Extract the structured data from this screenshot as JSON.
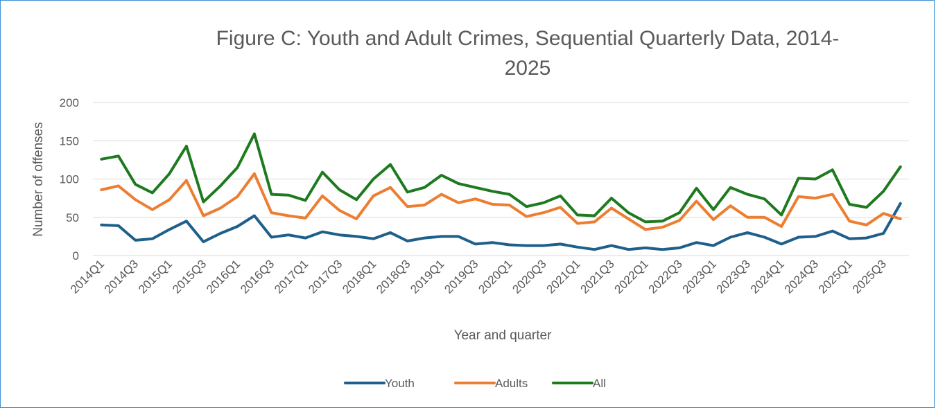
{
  "chart_data": {
    "type": "line",
    "title_line1": "Figure C: Youth and Adult Crimes, Sequential Quarterly Data, 2014-",
    "title_line2": "2025",
    "xlabel": "Year and quarter",
    "ylabel": "Number of offenses",
    "ylim": [
      0,
      200
    ],
    "yticks": [
      0,
      50,
      100,
      150,
      200
    ],
    "grid": true,
    "legend_position": "bottom",
    "x": [
      "2014Q1",
      "2014Q2",
      "2014Q3",
      "2014Q4",
      "2015Q1",
      "2015Q2",
      "2015Q3",
      "2015Q4",
      "2016Q1",
      "2016Q2",
      "2016Q3",
      "2016Q4",
      "2017Q1",
      "2017Q2",
      "2017Q3",
      "2017Q4",
      "2018Q1",
      "2018Q2",
      "2018Q3",
      "2018Q4",
      "2019Q1",
      "2019Q2",
      "2019Q3",
      "2019Q4",
      "2020Q1",
      "2020Q2",
      "2020Q3",
      "2020Q4",
      "2021Q1",
      "2021Q2",
      "2021Q3",
      "2021Q4",
      "2022Q1",
      "2022Q2",
      "2022Q3",
      "2022Q4",
      "2023Q1",
      "2023Q2",
      "2023Q3",
      "2023Q4",
      "2024Q1",
      "2024Q2",
      "2024Q3",
      "2024Q4",
      "2025Q1",
      "2025Q2",
      "2025Q3",
      "2025Q4"
    ],
    "x_tick_labels": [
      "2014Q1",
      "2014Q3",
      "2015Q1",
      "2015Q3",
      "2016Q1",
      "2016Q3",
      "2017Q1",
      "2017Q3",
      "2018Q1",
      "2018Q3",
      "2019Q1",
      "2019Q3",
      "2020Q1",
      "2020Q3",
      "2021Q1",
      "2021Q3",
      "2022Q1",
      "2022Q3",
      "2023Q1",
      "2023Q3",
      "2024Q1",
      "2024Q3",
      "2025Q1",
      "2025Q3"
    ],
    "series": [
      {
        "name": "Youth",
        "color": "#1f5f8b",
        "values": [
          40,
          39,
          20,
          22,
          34,
          45,
          18,
          29,
          38,
          52,
          24,
          27,
          23,
          31,
          27,
          25,
          22,
          30,
          19,
          23,
          25,
          25,
          15,
          17,
          14,
          13,
          13,
          15,
          11,
          8,
          13,
          8,
          10,
          8,
          10,
          17,
          13,
          24,
          30,
          24,
          15,
          24,
          25,
          32,
          22,
          23,
          29,
          68
        ]
      },
      {
        "name": "Adults",
        "color": "#ed7d31",
        "values": [
          86,
          91,
          73,
          60,
          73,
          98,
          52,
          62,
          77,
          107,
          56,
          52,
          49,
          78,
          59,
          48,
          78,
          89,
          64,
          66,
          80,
          69,
          74,
          67,
          66,
          51,
          56,
          63,
          42,
          44,
          62,
          48,
          34,
          37,
          46,
          71,
          47,
          65,
          50,
          50,
          38,
          77,
          75,
          80,
          45,
          40,
          55,
          48
        ]
      },
      {
        "name": "All",
        "color": "#1e7a1e",
        "values": [
          126,
          130,
          93,
          82,
          107,
          143,
          70,
          91,
          115,
          159,
          80,
          79,
          72,
          109,
          86,
          73,
          100,
          119,
          83,
          89,
          105,
          94,
          89,
          84,
          80,
          64,
          69,
          78,
          53,
          52,
          75,
          56,
          44,
          45,
          56,
          88,
          60,
          89,
          80,
          74,
          53,
          101,
          100,
          112,
          67,
          63,
          84,
          116
        ]
      }
    ]
  }
}
